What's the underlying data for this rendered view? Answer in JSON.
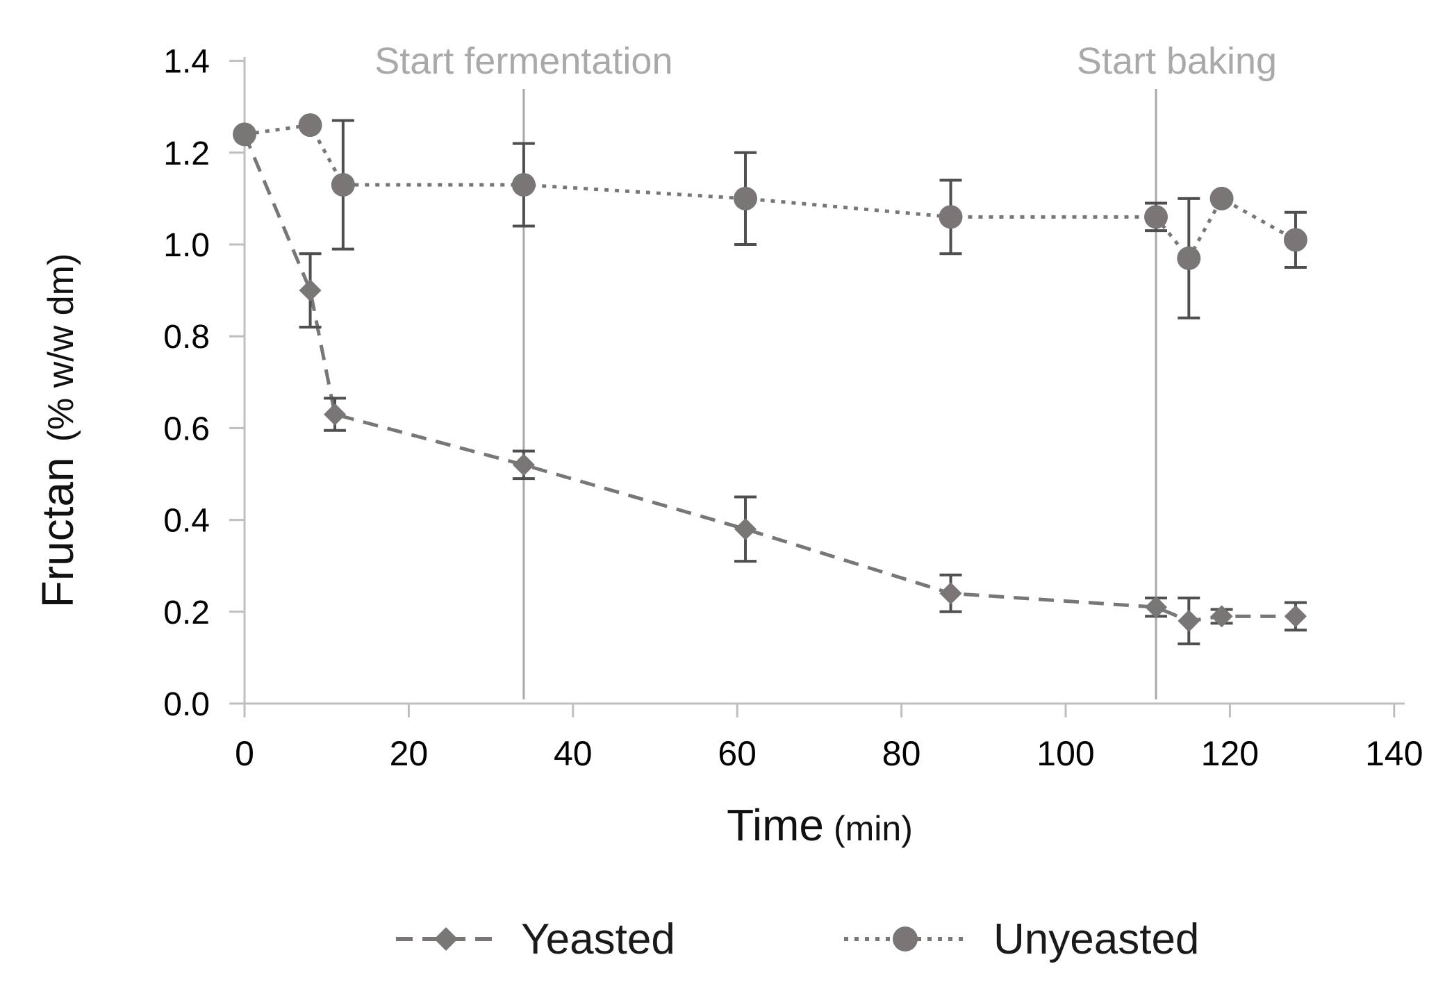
{
  "chart_data": {
    "type": "line",
    "title": "",
    "xlabel": "Time",
    "xlabel_unit": "(min)",
    "ylabel": "Fructan",
    "ylabel_unit": "(% w/w dm)",
    "xlim": [
      0,
      140
    ],
    "ylim": [
      0.0,
      1.4
    ],
    "grid": false,
    "legend_position": "bottom-center",
    "x_ticks": [
      "0",
      "20",
      "40",
      "60",
      "80",
      "100",
      "120",
      "140"
    ],
    "x_tick_values": [
      0,
      20,
      40,
      60,
      80,
      100,
      120,
      140
    ],
    "y_ticks": [
      "0.0",
      "0.2",
      "0.4",
      "0.6",
      "0.8",
      "1.0",
      "1.2",
      "1.4"
    ],
    "y_tick_values": [
      0.0,
      0.2,
      0.4,
      0.6,
      0.8,
      1.0,
      1.2,
      1.4
    ],
    "annotations": [
      {
        "label": "Start fermentation",
        "x_min": 34,
        "label_dx": 0
      },
      {
        "label": "Start baking",
        "x_min": 111,
        "label_dx": 30
      }
    ],
    "series": [
      {
        "name": "Yeasted",
        "marker": "diamond",
        "line_style": "dashed",
        "x": [
          0,
          8,
          11,
          34,
          61,
          86,
          111,
          115,
          119,
          128
        ],
        "values": [
          1.24,
          0.9,
          0.63,
          0.52,
          0.38,
          0.24,
          0.21,
          0.18,
          0.19,
          0.19
        ],
        "errors": [
          0,
          0.08,
          0.035,
          0.03,
          0.07,
          0.04,
          0.02,
          0.05,
          0.015,
          0.03
        ]
      },
      {
        "name": "Unyeasted",
        "marker": "circle",
        "line_style": "dotted",
        "x": [
          0,
          8,
          12,
          34,
          61,
          86,
          111,
          115,
          119,
          128
        ],
        "values": [
          1.24,
          1.26,
          1.13,
          1.13,
          1.1,
          1.06,
          1.06,
          0.97,
          1.1,
          1.01
        ],
        "errors": [
          0,
          0,
          0.14,
          0.09,
          0.1,
          0.08,
          0.03,
          0.13,
          0,
          0.06
        ]
      }
    ],
    "colors": {
      "series": "#7a7676",
      "error_bars": "#4f4f4f",
      "annotation_line": "#a9a9a9",
      "annotation_text": "#a9a9a9",
      "axis": "#bfbfbf",
      "tick_label": "#000000",
      "axis_title": "#111111",
      "legend_text": "#1a1a1a",
      "background": "#ffffff"
    }
  }
}
